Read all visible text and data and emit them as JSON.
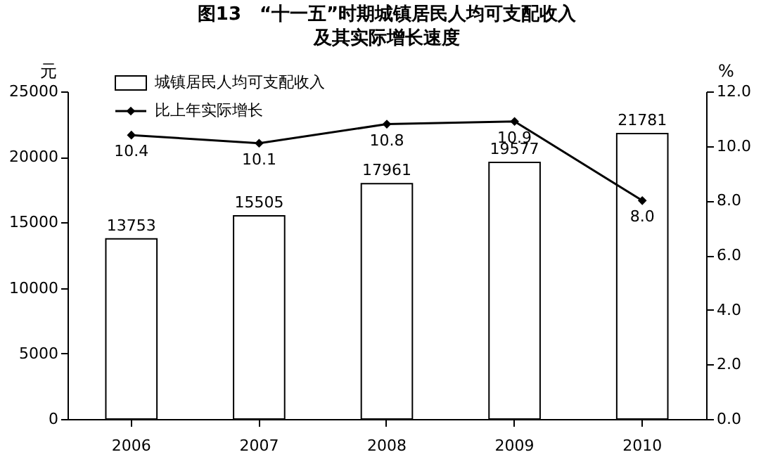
{
  "chart_data": {
    "type": "bar",
    "title": "图13　“十一五”时期城镇居民人均可支配收入及其实际增长速度",
    "ylabel": "元",
    "y2label": "%",
    "categories": [
      "2006",
      "2007",
      "2008",
      "2009",
      "2010"
    ],
    "series": [
      {
        "name": "城镇居民人均可支配收入",
        "color": "#ffffff",
        "values": [
          13753,
          15505,
          17961,
          19577,
          21781
        ]
      },
      {
        "name": "比上年实际增长",
        "type": "line",
        "axis": "y2",
        "color": "#000000",
        "marker": "diamond",
        "line_style": "solid",
        "values": [
          10.4,
          10.1,
          10.8,
          10.9,
          8.0
        ],
        "value_labels": [
          "10.4",
          "10.1",
          "10.8",
          "10.9",
          "8.0"
        ]
      }
    ],
    "data_labels": true,
    "ylim": [
      0,
      25000
    ],
    "yticks": [
      0,
      5000,
      10000,
      15000,
      20000,
      25000
    ],
    "y2lim": [
      0,
      12
    ],
    "y2ticks": [
      {
        "value": 0,
        "label": "0.0"
      },
      {
        "value": 2,
        "label": "2.0"
      },
      {
        "value": 4,
        "label": "4.0"
      },
      {
        "value": 6,
        "label": "6.0"
      },
      {
        "value": 8,
        "label": "8.0"
      },
      {
        "value": 10,
        "label": "10.0"
      },
      {
        "value": 12,
        "label": "12.0"
      }
    ],
    "grid": false,
    "legend": "top left"
  }
}
